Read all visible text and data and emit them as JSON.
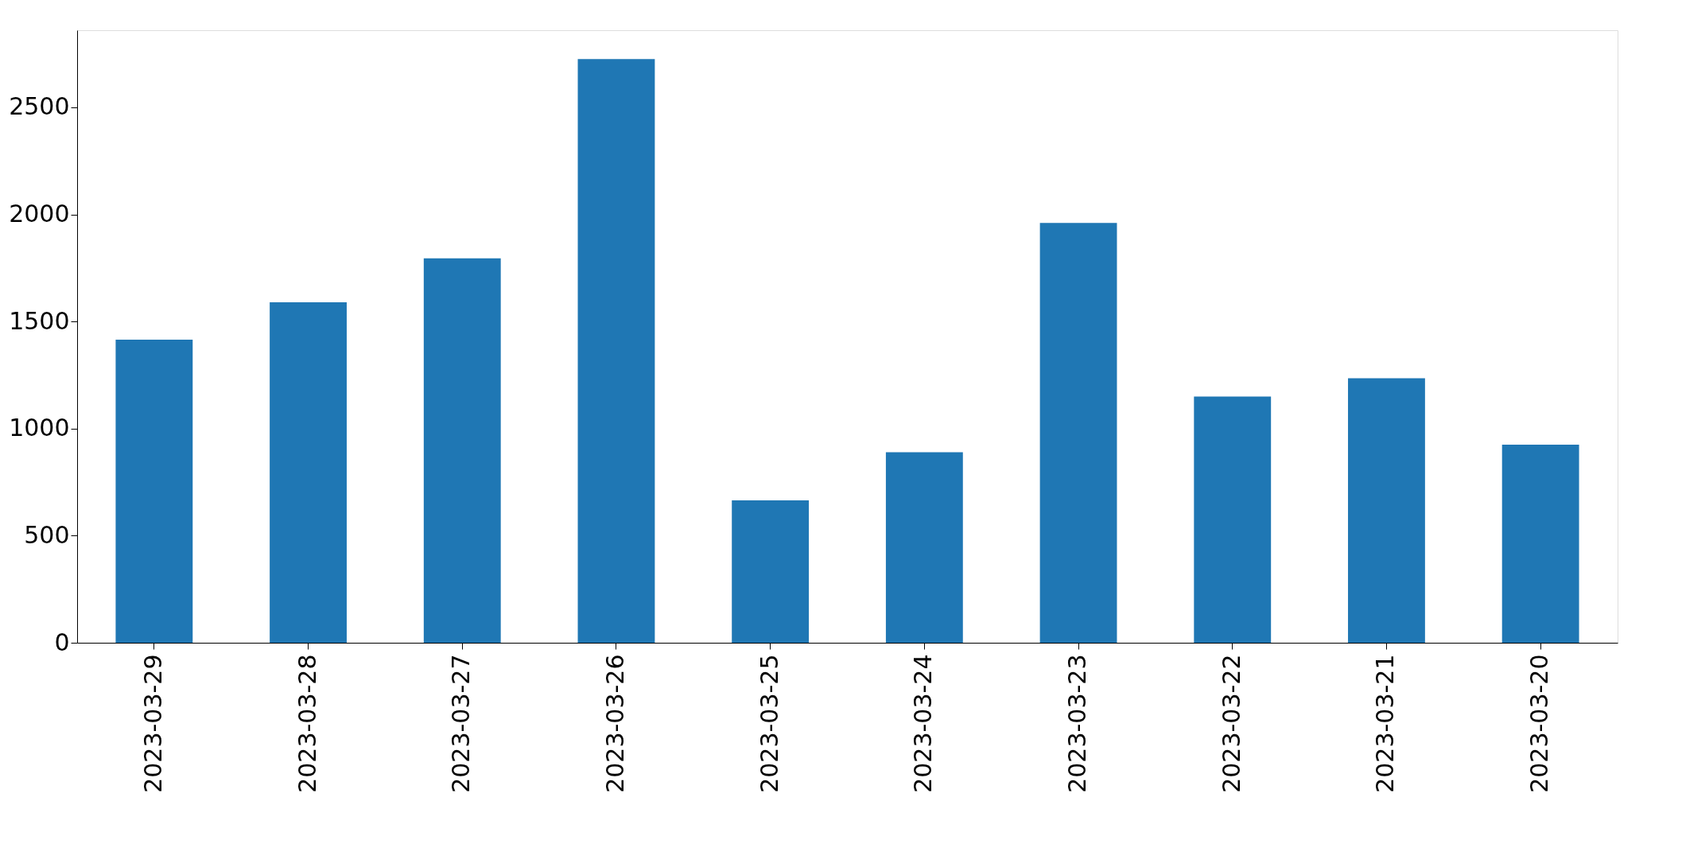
{
  "chart_data": {
    "type": "bar",
    "categories": [
      "2023-03-29",
      "2023-03-28",
      "2023-03-27",
      "2023-03-26",
      "2023-03-25",
      "2023-03-24",
      "2023-03-23",
      "2023-03-22",
      "2023-03-21",
      "2023-03-20"
    ],
    "values": [
      1415,
      1590,
      1795,
      2725,
      665,
      890,
      1960,
      1150,
      1235,
      925
    ],
    "color": "#1f77b4",
    "ylim": [
      0,
      2860
    ],
    "yticks": [
      0,
      500,
      1000,
      1500,
      2000,
      2500
    ],
    "grid": false
  }
}
